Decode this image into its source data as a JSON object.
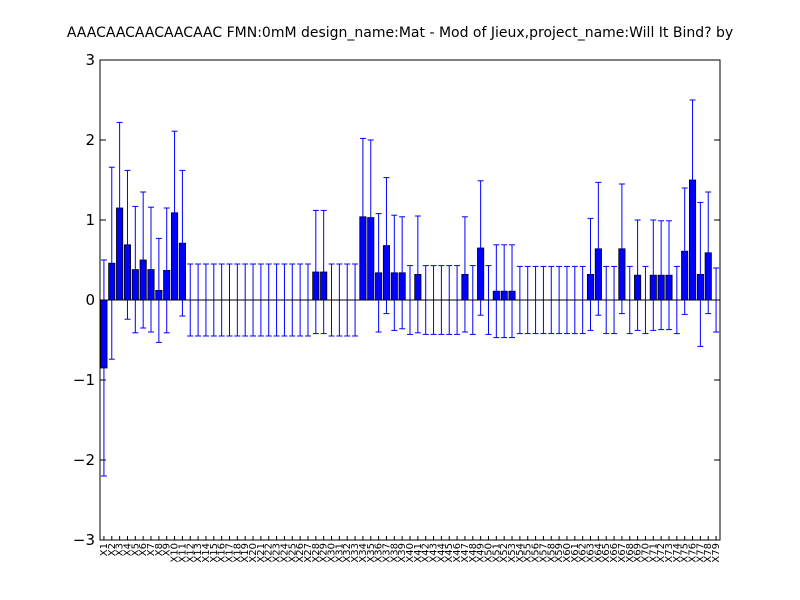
{
  "chart_data": {
    "type": "bar",
    "title": "AAACAACAACAACAAC  FMN:0mM  design_name:Mat - Mod of Jieux,project_name:Will It Bind? by",
    "xlabel": "",
    "ylabel": "",
    "ylim": [
      -3,
      3
    ],
    "yticks": [
      -3,
      -2,
      -1,
      0,
      1,
      2,
      3
    ],
    "ytick_labels": [
      "−3",
      "−2",
      "−1",
      "0",
      "1",
      "2",
      "3"
    ],
    "grid": false,
    "colors": {
      "bar": "#0000ff",
      "error": "#0000ff",
      "axis": "#000000"
    },
    "categories": [
      "X1",
      "X2",
      "X3",
      "X4",
      "X5",
      "X6",
      "X7",
      "X8",
      "X9",
      "X10",
      "X11",
      "X12",
      "X13",
      "X14",
      "X15",
      "X16",
      "X17",
      "X18",
      "X19",
      "X20",
      "X21",
      "X22",
      "X23",
      "X24",
      "X25",
      "X26",
      "X27",
      "X28",
      "X29",
      "X30",
      "X31",
      "X32",
      "X33",
      "X34",
      "X35",
      "X36",
      "X37",
      "X38",
      "X39",
      "X40",
      "X41",
      "X42",
      "X43",
      "X44",
      "X45",
      "X46",
      "X47",
      "X48",
      "X49",
      "X50",
      "X51",
      "X52",
      "X53",
      "X54",
      "X55",
      "X56",
      "X57",
      "X58",
      "X59",
      "X60",
      "X61",
      "X62",
      "X63",
      "X64",
      "X65",
      "X66",
      "X67",
      "X68",
      "X69",
      "X70",
      "X71",
      "X72",
      "X73",
      "X74",
      "X75",
      "X76",
      "X77",
      "X78",
      "X79"
    ],
    "values": [
      -0.85,
      0.46,
      1.15,
      0.69,
      0.38,
      0.5,
      0.38,
      0.12,
      0.37,
      1.09,
      0.71,
      0,
      0,
      0,
      0,
      0,
      0,
      0,
      0,
      0,
      0,
      0,
      0,
      0,
      0,
      0,
      0,
      0.35,
      0.35,
      0,
      0,
      0,
      0,
      1.04,
      1.03,
      0.34,
      0.68,
      0.34,
      0.34,
      0,
      0.32,
      0,
      0,
      0,
      0,
      0,
      0.32,
      0,
      0.65,
      0,
      0.11,
      0.11,
      0.11,
      0,
      0,
      0,
      0,
      0,
      0,
      0,
      0,
      0,
      0.32,
      0.64,
      0,
      0,
      0.64,
      0,
      0.31,
      0,
      0.31,
      0.31,
      0.31,
      0,
      0.61,
      1.5,
      0.32,
      0.59,
      0
    ],
    "errors": [
      1.35,
      1.2,
      1.07,
      0.93,
      0.79,
      0.85,
      0.78,
      0.65,
      0.78,
      1.02,
      0.91,
      0.45,
      0.45,
      0.45,
      0.45,
      0.45,
      0.45,
      0.45,
      0.45,
      0.45,
      0.45,
      0.45,
      0.45,
      0.45,
      0.45,
      0.45,
      0.45,
      0.77,
      0.77,
      0.45,
      0.45,
      0.45,
      0.45,
      0.98,
      0.97,
      0.74,
      0.85,
      0.72,
      0.7,
      0.43,
      0.73,
      0.43,
      0.43,
      0.43,
      0.43,
      0.43,
      0.72,
      0.43,
      0.84,
      0.43,
      0.58,
      0.58,
      0.58,
      0.42,
      0.42,
      0.42,
      0.42,
      0.42,
      0.42,
      0.42,
      0.42,
      0.42,
      0.7,
      0.83,
      0.42,
      0.42,
      0.81,
      0.42,
      0.69,
      0.42,
      0.69,
      0.68,
      0.68,
      0.42,
      0.79,
      1.0,
      0.9,
      0.76,
      0.4
    ]
  }
}
